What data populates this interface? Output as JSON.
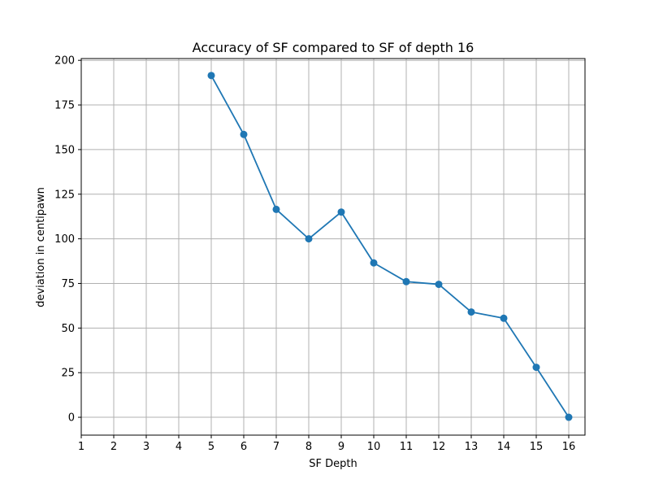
{
  "chart_data": {
    "type": "line",
    "title": "Accuracy of SF compared to SF of depth 16",
    "xlabel": "SF Depth",
    "ylabel": "deviation in centipawn",
    "xlim": [
      1,
      16.5
    ],
    "ylim": [
      -10,
      201
    ],
    "xticks": [
      1,
      2,
      3,
      4,
      5,
      6,
      7,
      8,
      9,
      10,
      11,
      12,
      13,
      14,
      15,
      16
    ],
    "yticks": [
      0,
      25,
      50,
      75,
      100,
      125,
      150,
      175,
      200
    ],
    "grid": true,
    "series": [
      {
        "color": "#1f77b4",
        "marker": "circle",
        "x": [
          5,
          6,
          7,
          8,
          9,
          10,
          11,
          12,
          13,
          14,
          15,
          16
        ],
        "y": [
          191.5,
          158.5,
          116.5,
          100,
          115,
          86.5,
          76,
          74.5,
          59,
          55.5,
          28,
          0
        ]
      }
    ]
  }
}
